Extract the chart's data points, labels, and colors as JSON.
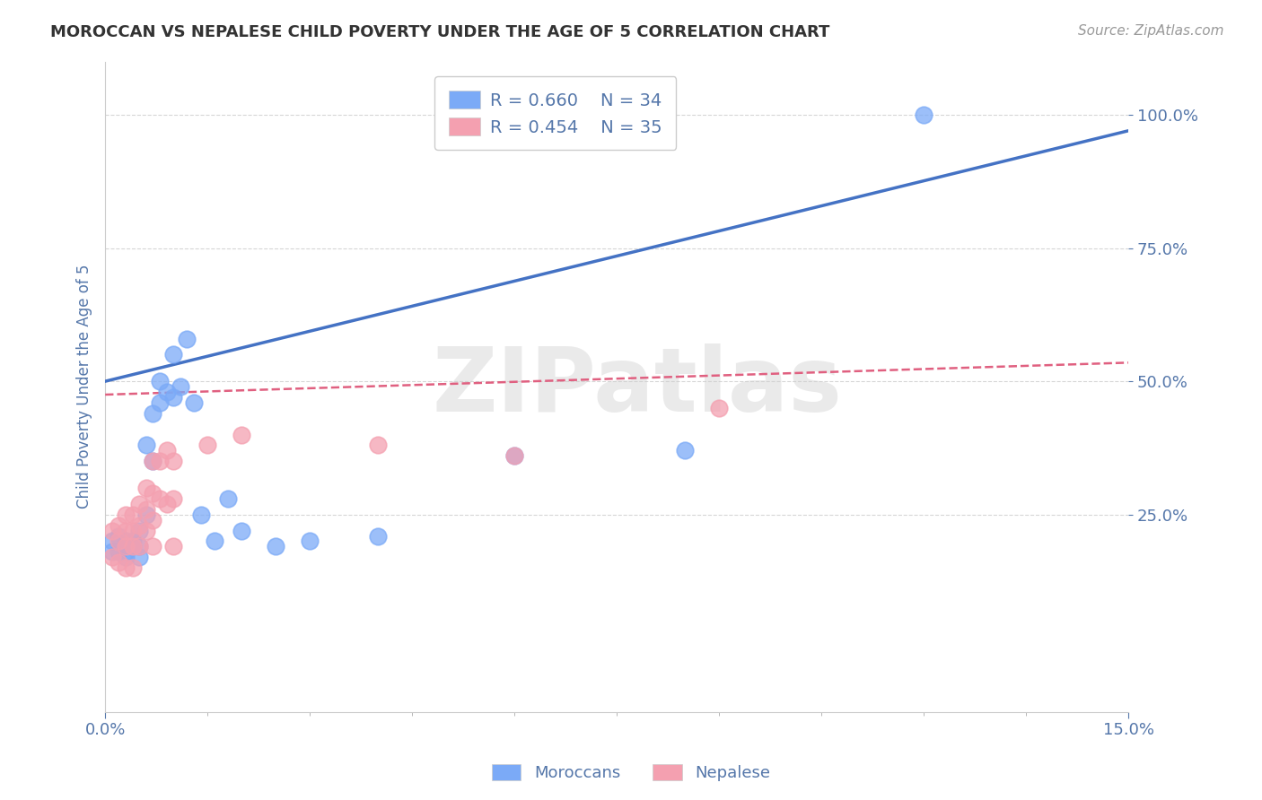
{
  "title": "MOROCCAN VS NEPALESE CHILD POVERTY UNDER THE AGE OF 5 CORRELATION CHART",
  "source": "Source: ZipAtlas.com",
  "ylabel": "Child Poverty Under the Age of 5",
  "watermark": "ZIPatlas",
  "legend_blue_r": "R = 0.660",
  "legend_blue_n": "N = 34",
  "legend_pink_r": "R = 0.454",
  "legend_pink_n": "N = 35",
  "xlim": [
    0.0,
    0.15
  ],
  "ylim": [
    -0.12,
    1.1
  ],
  "xticklabels": [
    "0.0%",
    "15.0%"
  ],
  "yticks": [
    0.25,
    0.5,
    0.75,
    1.0
  ],
  "yticklabels": [
    "25.0%",
    "50.0%",
    "75.0%",
    "100.0%"
  ],
  "blue_color": "#7BAAF7",
  "pink_color": "#F4A0B0",
  "trend_blue_color": "#4472C4",
  "trend_pink_color": "#E06080",
  "blue_x": [
    0.001,
    0.001,
    0.002,
    0.002,
    0.003,
    0.003,
    0.003,
    0.004,
    0.004,
    0.005,
    0.005,
    0.005,
    0.006,
    0.006,
    0.007,
    0.007,
    0.008,
    0.008,
    0.009,
    0.01,
    0.01,
    0.011,
    0.012,
    0.013,
    0.014,
    0.016,
    0.018,
    0.02,
    0.025,
    0.03,
    0.04,
    0.06,
    0.085,
    0.12
  ],
  "blue_y": [
    0.2,
    0.18,
    0.21,
    0.18,
    0.2,
    0.18,
    0.17,
    0.2,
    0.19,
    0.22,
    0.19,
    0.17,
    0.38,
    0.25,
    0.44,
    0.35,
    0.5,
    0.46,
    0.48,
    0.55,
    0.47,
    0.49,
    0.58,
    0.46,
    0.25,
    0.2,
    0.28,
    0.22,
    0.19,
    0.2,
    0.21,
    0.36,
    0.37,
    1.0
  ],
  "pink_x": [
    0.001,
    0.001,
    0.002,
    0.002,
    0.002,
    0.003,
    0.003,
    0.003,
    0.003,
    0.004,
    0.004,
    0.004,
    0.004,
    0.005,
    0.005,
    0.005,
    0.006,
    0.006,
    0.006,
    0.007,
    0.007,
    0.007,
    0.007,
    0.008,
    0.008,
    0.009,
    0.009,
    0.01,
    0.01,
    0.01,
    0.015,
    0.02,
    0.04,
    0.06,
    0.09
  ],
  "pink_y": [
    0.22,
    0.17,
    0.23,
    0.2,
    0.16,
    0.25,
    0.22,
    0.19,
    0.15,
    0.25,
    0.22,
    0.19,
    0.15,
    0.27,
    0.23,
    0.19,
    0.3,
    0.26,
    0.22,
    0.35,
    0.29,
    0.24,
    0.19,
    0.35,
    0.28,
    0.37,
    0.27,
    0.35,
    0.28,
    0.19,
    0.38,
    0.4,
    0.38,
    0.36,
    0.45
  ],
  "blue_trend_x0": 0.0,
  "blue_trend_y0": 0.5,
  "blue_trend_x1": 0.15,
  "blue_trend_y1": 0.97,
  "pink_trend_x0": 0.0,
  "pink_trend_y0": 0.475,
  "pink_trend_x1": 0.15,
  "pink_trend_y1": 0.535,
  "background_color": "#FFFFFF",
  "grid_color": "#CCCCCC",
  "title_color": "#333333",
  "axis_label_color": "#5577AA",
  "tick_color": "#5577AA"
}
